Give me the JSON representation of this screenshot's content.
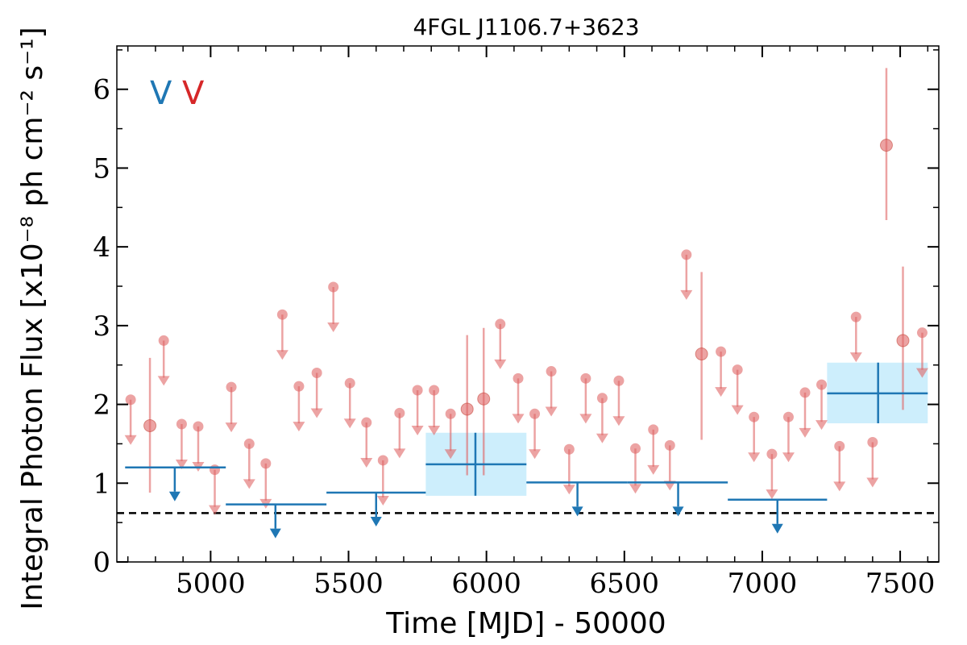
{
  "chart_data": {
    "type": "scatter",
    "title": "4FGL J1106.7+3623",
    "xlabel": "Time [MJD] - 50000",
    "ylabel": "Integral Photon Flux [x10⁻⁸ ph cm⁻² s⁻¹]",
    "xlim": [
      4660,
      7640
    ],
    "ylim": [
      0,
      6.55
    ],
    "x_ticks": [
      5000,
      5500,
      6000,
      6500,
      7000,
      7500
    ],
    "y_ticks": [
      0,
      1,
      2,
      3,
      4,
      5,
      6
    ],
    "x_tick_labels": [
      "5000",
      "5500",
      "6000",
      "6500",
      "7000",
      "7500"
    ],
    "y_tick_labels": [
      "0",
      "1",
      "2",
      "3",
      "4",
      "5",
      "6"
    ],
    "reference_line": 0.62,
    "legend": {
      "placement": "top-left",
      "entries": [
        {
          "label": "V",
          "color": "#1f77b4"
        },
        {
          "label": "V",
          "color": "#d62728"
        }
      ]
    },
    "series": [
      {
        "color": "#1f77b4",
        "detections": [
          {
            "x": 5960,
            "x_lo": 5780,
            "x_hi": 6145,
            "y": 1.24,
            "y_lo": 0.84,
            "y_hi": 1.64
          },
          {
            "x": 7420,
            "x_lo": 7235,
            "x_hi": 7600,
            "y": 2.14,
            "y_lo": 1.76,
            "y_hi": 2.53
          }
        ],
        "upper_limits": [
          {
            "x": 4870,
            "x_lo": 4690,
            "x_hi": 5055,
            "y": 1.2
          },
          {
            "x": 5235,
            "x_lo": 5055,
            "x_hi": 5420,
            "y": 0.73
          },
          {
            "x": 5600,
            "x_lo": 5420,
            "x_hi": 5780,
            "y": 0.88
          },
          {
            "x": 6330,
            "x_lo": 6145,
            "x_hi": 6510,
            "y": 1.01
          },
          {
            "x": 6695,
            "x_lo": 6510,
            "x_hi": 6875,
            "y": 1.01
          },
          {
            "x": 7055,
            "x_lo": 6875,
            "x_hi": 7235,
            "y": 0.79
          }
        ]
      },
      {
        "color": "#e06666",
        "detections": [
          {
            "x": 4780,
            "y": 1.73,
            "y_lo": 0.88,
            "y_hi": 2.59
          },
          {
            "x": 5930,
            "y": 1.94,
            "y_lo": 1.1,
            "y_hi": 2.88
          },
          {
            "x": 5990,
            "y": 2.07,
            "y_lo": 1.1,
            "y_hi": 2.97
          },
          {
            "x": 6780,
            "y": 2.64,
            "y_lo": 1.55,
            "y_hi": 3.68
          },
          {
            "x": 7450,
            "y": 5.29,
            "y_lo": 4.34,
            "y_hi": 6.27
          },
          {
            "x": 7510,
            "y": 2.81,
            "y_lo": 1.93,
            "y_hi": 3.75
          }
        ],
        "upper_limits": [
          {
            "x": 4710,
            "y": 2.06
          },
          {
            "x": 4830,
            "y": 2.81
          },
          {
            "x": 4895,
            "y": 1.75
          },
          {
            "x": 4955,
            "y": 1.72
          },
          {
            "x": 5015,
            "y": 1.17
          },
          {
            "x": 5075,
            "y": 2.22
          },
          {
            "x": 5140,
            "y": 1.5
          },
          {
            "x": 5200,
            "y": 1.25
          },
          {
            "x": 5260,
            "y": 3.14
          },
          {
            "x": 5320,
            "y": 2.23
          },
          {
            "x": 5385,
            "y": 2.4
          },
          {
            "x": 5445,
            "y": 3.49
          },
          {
            "x": 5505,
            "y": 2.27
          },
          {
            "x": 5565,
            "y": 1.77
          },
          {
            "x": 5625,
            "y": 1.29
          },
          {
            "x": 5685,
            "y": 1.89
          },
          {
            "x": 5750,
            "y": 2.18
          },
          {
            "x": 5810,
            "y": 2.18
          },
          {
            "x": 5870,
            "y": 1.88
          },
          {
            "x": 6050,
            "y": 3.02
          },
          {
            "x": 6115,
            "y": 2.33
          },
          {
            "x": 6175,
            "y": 1.88
          },
          {
            "x": 6235,
            "y": 2.42
          },
          {
            "x": 6300,
            "y": 1.43
          },
          {
            "x": 6360,
            "y": 2.33
          },
          {
            "x": 6420,
            "y": 2.08
          },
          {
            "x": 6480,
            "y": 2.3
          },
          {
            "x": 6540,
            "y": 1.44
          },
          {
            "x": 6605,
            "y": 1.68
          },
          {
            "x": 6665,
            "y": 1.48
          },
          {
            "x": 6725,
            "y": 3.9
          },
          {
            "x": 6850,
            "y": 2.67
          },
          {
            "x": 6910,
            "y": 2.44
          },
          {
            "x": 6970,
            "y": 1.84
          },
          {
            "x": 7035,
            "y": 1.37
          },
          {
            "x": 7095,
            "y": 1.84
          },
          {
            "x": 7155,
            "y": 2.15
          },
          {
            "x": 7215,
            "y": 2.25
          },
          {
            "x": 7280,
            "y": 1.47
          },
          {
            "x": 7340,
            "y": 3.11
          },
          {
            "x": 7400,
            "y": 1.52
          },
          {
            "x": 7580,
            "y": 2.91
          }
        ]
      }
    ]
  }
}
